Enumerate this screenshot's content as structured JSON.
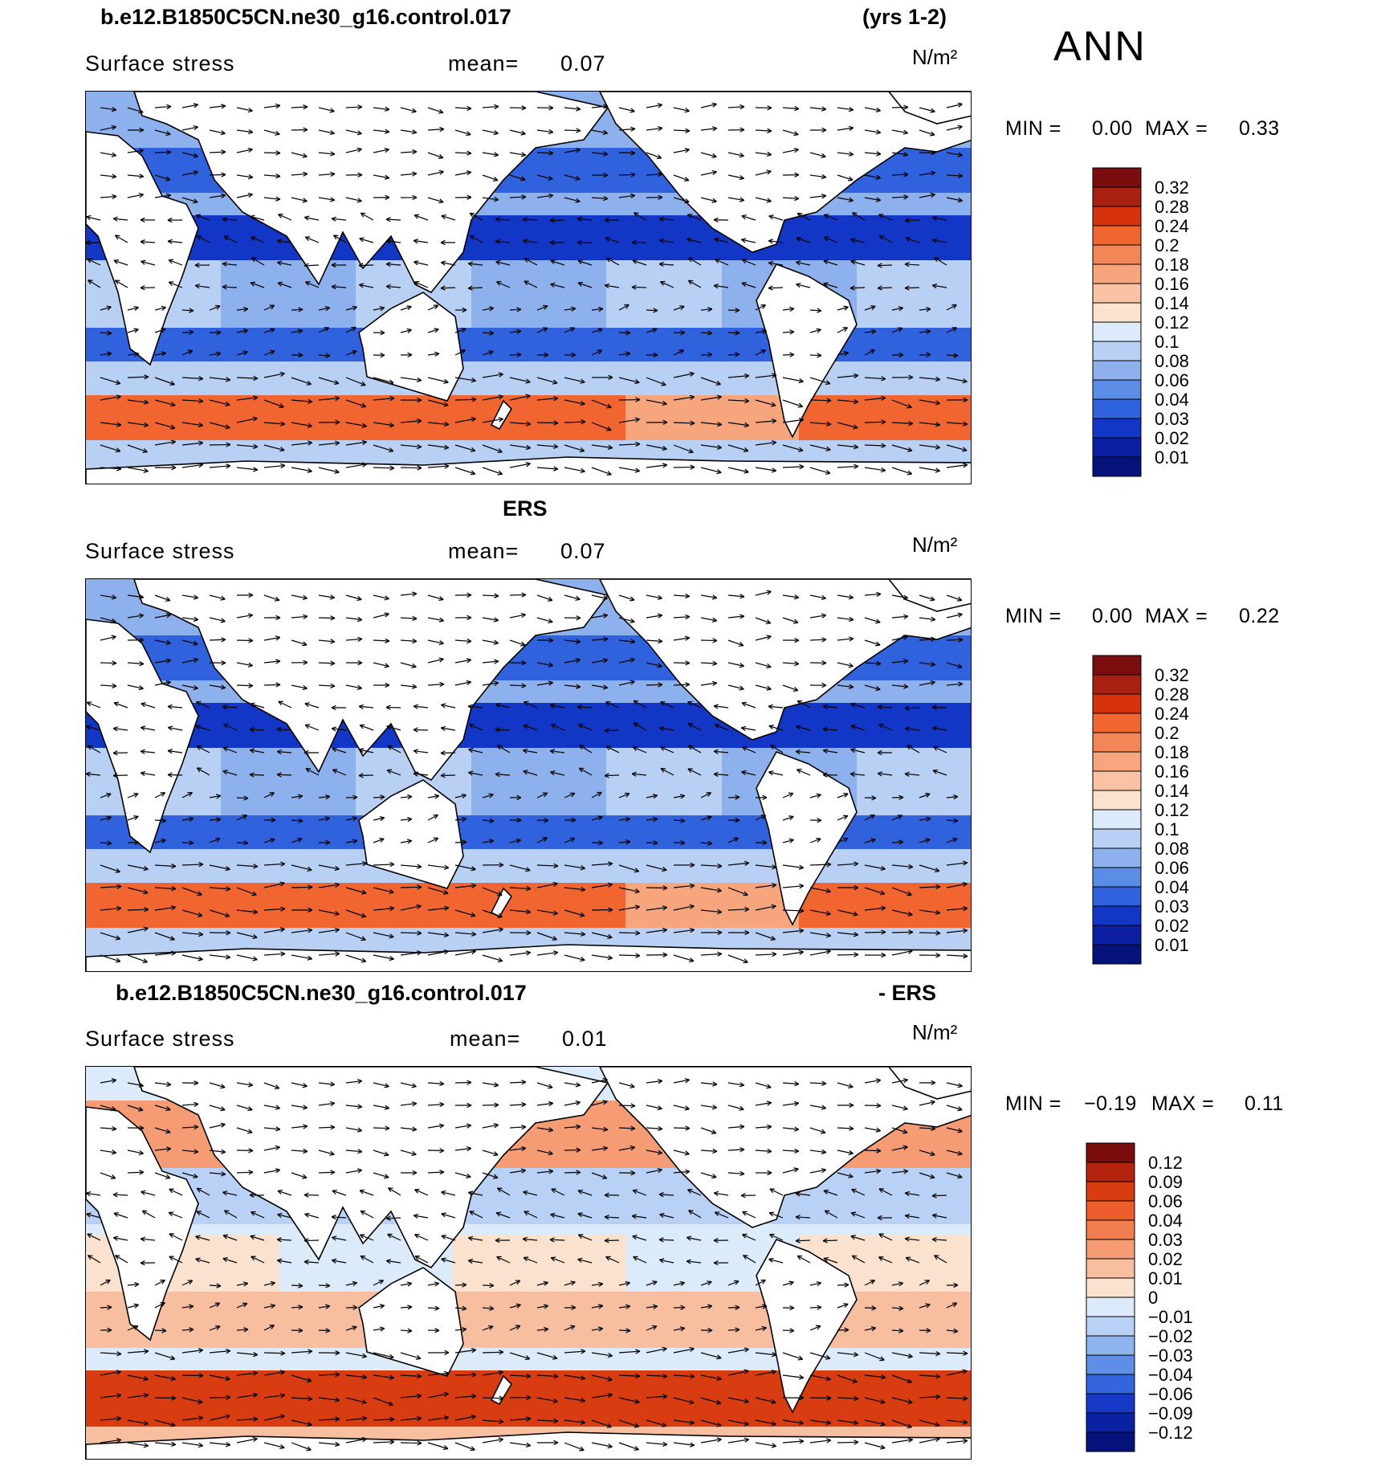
{
  "season": "ANN",
  "panels": [
    {
      "title_left": "b.e12.B1850C5CN.ne30_g16.control.017",
      "title_right": "(yrs 1-2)",
      "variable": "Surface stress",
      "mean_label": "mean=",
      "mean_value": "0.07",
      "units": "N/m²",
      "min_label": "MIN =",
      "min_value": "0.00",
      "max_label": "MAX =",
      "max_value": "0.33",
      "colorbar_labels": [
        "0.32",
        "0.28",
        "0.24",
        "0.2",
        "0.18",
        "0.16",
        "0.14",
        "0.12",
        "0.1",
        "0.08",
        "0.06",
        "0.04",
        "0.03",
        "0.02",
        "0.01"
      ],
      "colorbar_colors": [
        "#7a0d0d",
        "#a8200f",
        "#d6330c",
        "#f06530",
        "#f38656",
        "#f6a57d",
        "#f9c3a3",
        "#fbe3ce",
        "#dcebfa",
        "#b7d0f3",
        "#8db1ec",
        "#5b8de6",
        "#2f62dc",
        "#1237c6",
        "#0a1fa2",
        "#05127a"
      ]
    },
    {
      "title_left": "",
      "title_center": "ERS",
      "variable": "Surface stress",
      "mean_label": "mean=",
      "mean_value": "0.07",
      "units": "N/m²",
      "min_label": "MIN =",
      "min_value": "0.00",
      "max_label": "MAX =",
      "max_value": "0.22",
      "colorbar_labels": [
        "0.32",
        "0.28",
        "0.24",
        "0.2",
        "0.18",
        "0.16",
        "0.14",
        "0.12",
        "0.1",
        "0.08",
        "0.06",
        "0.04",
        "0.03",
        "0.02",
        "0.01"
      ],
      "colorbar_colors": [
        "#7a0d0d",
        "#a8200f",
        "#d6330c",
        "#f06530",
        "#f38656",
        "#f6a57d",
        "#f9c3a3",
        "#fbe3ce",
        "#dcebfa",
        "#b7d0f3",
        "#8db1ec",
        "#5b8de6",
        "#2f62dc",
        "#1237c6",
        "#0a1fa2",
        "#05127a"
      ]
    },
    {
      "title_left": "b.e12.B1850C5CN.ne30_g16.control.017",
      "title_right": "- ERS",
      "variable": "Surface stress",
      "mean_label": "mean=",
      "mean_value": "0.01",
      "units": "N/m²",
      "min_label": "MIN =",
      "min_value": "−0.19",
      "max_label": "MAX =",
      "max_value": "0.11",
      "colorbar_labels": [
        "0.12",
        "0.09",
        "0.06",
        "0.04",
        "0.03",
        "0.02",
        "0.01",
        "0",
        "−0.01",
        "−0.02",
        "−0.03",
        "−0.04",
        "−0.06",
        "−0.09",
        "−0.12"
      ],
      "colorbar_colors": [
        "#7a0d0d",
        "#b3230e",
        "#d83d11",
        "#ee5d2c",
        "#f27d4e",
        "#f59c75",
        "#f8bea0",
        "#fbe2cf",
        "#dbebfa",
        "#b8d1f4",
        "#8fb3ed",
        "#5e8fe6",
        "#3464dc",
        "#1539c6",
        "#0b21a3",
        "#05127a"
      ]
    }
  ],
  "chart_data": {
    "type": "heatmap",
    "variable": "Surface stress",
    "season": "ANN",
    "units": "N/m²",
    "panels": [
      {
        "dataset": "b.e12.B1850C5CN.ne30_g16.control.017 (yrs 1-2)",
        "mean": 0.07,
        "min": 0.0,
        "max": 0.33
      },
      {
        "dataset": "ERS",
        "mean": 0.07,
        "min": 0.0,
        "max": 0.22
      },
      {
        "dataset": "b.e12.B1850C5CN.ne30_g16.control.017 - ERS",
        "mean": 0.01,
        "min": -0.19,
        "max": 0.11
      }
    ]
  }
}
